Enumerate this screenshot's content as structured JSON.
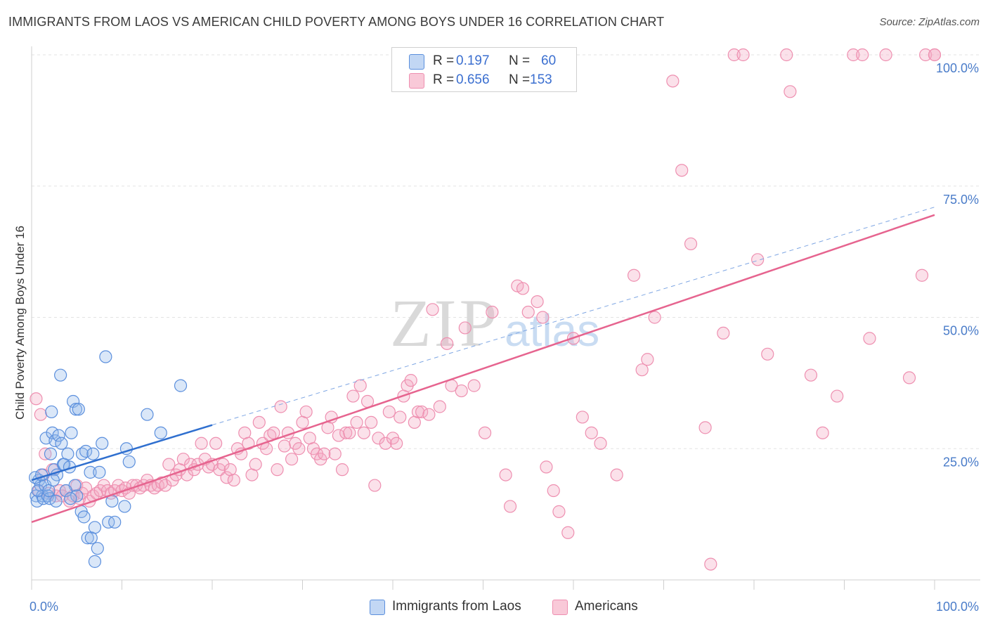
{
  "header": {
    "title": "IMMIGRANTS FROM LAOS VS AMERICAN CHILD POVERTY AMONG BOYS UNDER 16 CORRELATION CHART",
    "source": "Source: ZipAtlas.com"
  },
  "watermark": {
    "zip": "ZIP",
    "atlas": "atlas"
  },
  "legend": {
    "rows": [
      {
        "r_label": "R =",
        "r_value": "0.197",
        "n_label": "N =",
        "n_value": "60"
      },
      {
        "r_label": "R =",
        "r_value": "0.656",
        "n_label": "N =",
        "n_value": "153"
      }
    ]
  },
  "chart_data": {
    "type": "scatter",
    "ylabel": "Child Poverty Among Boys Under 16",
    "xlabel": "",
    "xlim": [
      0,
      100
    ],
    "ylim": [
      0,
      100
    ],
    "x_tick_labels": [
      "0.0%",
      "100.0%"
    ],
    "y_ticks": [
      {
        "value": 25,
        "label": "25.0%"
      },
      {
        "value": 50,
        "label": "50.0%"
      },
      {
        "value": 75,
        "label": "75.0%"
      },
      {
        "value": 100,
        "label": "100.0%"
      }
    ],
    "grid": true,
    "legend_position": "bottom",
    "colors": {
      "laos": "#5b8fdd",
      "americans": "#ee8fb0",
      "laos_line": "#2f6fcf",
      "americans_line": "#e6648f"
    },
    "series": [
      {
        "name": "Immigrants from Laos",
        "r": 0.197,
        "n": 60,
        "trend": {
          "x0": 0,
          "y0": 19.0,
          "x1": 20,
          "y1": 29.5,
          "dashed_extension_to": [
            100,
            71
          ]
        },
        "points": [
          [
            0.5,
            16
          ],
          [
            0.6,
            15
          ],
          [
            0.8,
            19
          ],
          [
            1,
            18
          ],
          [
            1.2,
            16
          ],
          [
            1.3,
            15.5
          ],
          [
            0.7,
            17
          ],
          [
            1.5,
            18
          ],
          [
            1.8,
            16
          ],
          [
            2,
            15.5
          ],
          [
            1.6,
            27
          ],
          [
            2.1,
            24
          ],
          [
            2.3,
            28
          ],
          [
            2.6,
            26.5
          ],
          [
            3,
            27.5
          ],
          [
            3.3,
            26
          ],
          [
            2.2,
            32
          ],
          [
            2.5,
            21
          ],
          [
            2.8,
            20
          ],
          [
            3.5,
            22
          ],
          [
            3.6,
            22
          ],
          [
            4,
            24
          ],
          [
            4.4,
            28
          ],
          [
            4.6,
            34
          ],
          [
            4.9,
            32.5
          ],
          [
            5.2,
            32.5
          ],
          [
            5.6,
            24
          ],
          [
            6,
            24.5
          ],
          [
            6.5,
            20.5
          ],
          [
            6.8,
            24
          ],
          [
            3.2,
            39
          ],
          [
            4.2,
            21.5
          ],
          [
            4.8,
            18
          ],
          [
            5,
            16
          ],
          [
            5.5,
            13
          ],
          [
            5.8,
            12
          ],
          [
            6.2,
            8
          ],
          [
            6.6,
            8
          ],
          [
            7,
            10
          ],
          [
            7.3,
            6
          ],
          [
            7.5,
            20.5
          ],
          [
            7.8,
            26
          ],
          [
            8.5,
            11
          ],
          [
            8.9,
            15
          ],
          [
            9.2,
            11
          ],
          [
            10.3,
            14
          ],
          [
            10.5,
            25
          ],
          [
            10.8,
            22.5
          ],
          [
            12.8,
            31.5
          ],
          [
            14.3,
            28
          ],
          [
            8.2,
            42.5
          ],
          [
            16.5,
            37
          ],
          [
            1.9,
            17
          ],
          [
            2.4,
            19
          ],
          [
            2.7,
            15
          ],
          [
            3.8,
            17
          ],
          [
            4.3,
            15.5
          ],
          [
            0.4,
            19.5
          ],
          [
            1.1,
            20
          ],
          [
            7,
            3.5
          ]
        ]
      },
      {
        "name": "Americans",
        "r": 0.656,
        "n": 153,
        "trend": {
          "x0": 0,
          "y0": 11,
          "x1": 100,
          "y1": 69.5
        },
        "points": [
          [
            0.5,
            34.5
          ],
          [
            0.8,
            17
          ],
          [
            1,
            31.5
          ],
          [
            1.3,
            20
          ],
          [
            1.5,
            24
          ],
          [
            1.9,
            16.5
          ],
          [
            2.3,
            21
          ],
          [
            2.7,
            16
          ],
          [
            3.1,
            17
          ],
          [
            3.4,
            16
          ],
          [
            3.8,
            17
          ],
          [
            4.2,
            15
          ],
          [
            4.6,
            16
          ],
          [
            5,
            18
          ],
          [
            5.3,
            15.5
          ],
          [
            5.6,
            16.5
          ],
          [
            6,
            17.5
          ],
          [
            6.4,
            15
          ],
          [
            6.8,
            16
          ],
          [
            7.2,
            16.5
          ],
          [
            7.6,
            17
          ],
          [
            8,
            18
          ],
          [
            8.4,
            17
          ],
          [
            8.8,
            16.5
          ],
          [
            9.2,
            17
          ],
          [
            9.6,
            18
          ],
          [
            10,
            17
          ],
          [
            10.4,
            17.5
          ],
          [
            10.8,
            16.5
          ],
          [
            11.2,
            18
          ],
          [
            11.6,
            18
          ],
          [
            12,
            17.5
          ],
          [
            12.4,
            18
          ],
          [
            12.8,
            19
          ],
          [
            13.2,
            18
          ],
          [
            13.6,
            17.5
          ],
          [
            14,
            18
          ],
          [
            14.4,
            18.5
          ],
          [
            14.8,
            18
          ],
          [
            15.2,
            22
          ],
          [
            15.6,
            19
          ],
          [
            16,
            20
          ],
          [
            16.4,
            21
          ],
          [
            16.8,
            23
          ],
          [
            17.2,
            20
          ],
          [
            17.6,
            22
          ],
          [
            18,
            21
          ],
          [
            18.4,
            22
          ],
          [
            18.8,
            26
          ],
          [
            19.2,
            23
          ],
          [
            19.6,
            21.5
          ],
          [
            20,
            22
          ],
          [
            20.4,
            26
          ],
          [
            20.8,
            21
          ],
          [
            21.2,
            22
          ],
          [
            21.6,
            19.5
          ],
          [
            22,
            21
          ],
          [
            22.4,
            19
          ],
          [
            22.8,
            25
          ],
          [
            23.2,
            24
          ],
          [
            23.6,
            28
          ],
          [
            24,
            26
          ],
          [
            24.4,
            20
          ],
          [
            24.8,
            22
          ],
          [
            25.2,
            30
          ],
          [
            25.6,
            26
          ],
          [
            26,
            25
          ],
          [
            26.4,
            27.5
          ],
          [
            26.8,
            28
          ],
          [
            27.2,
            21
          ],
          [
            27.6,
            33
          ],
          [
            28,
            25.5
          ],
          [
            28.4,
            28
          ],
          [
            28.8,
            23
          ],
          [
            29.2,
            26
          ],
          [
            29.6,
            25
          ],
          [
            30,
            30
          ],
          [
            30.4,
            32
          ],
          [
            30.8,
            27
          ],
          [
            31.2,
            25
          ],
          [
            31.6,
            24
          ],
          [
            32,
            23
          ],
          [
            32.4,
            24
          ],
          [
            32.8,
            29
          ],
          [
            33.2,
            31
          ],
          [
            33.6,
            24
          ],
          [
            34,
            27.5
          ],
          [
            34.4,
            21
          ],
          [
            34.8,
            28
          ],
          [
            35.2,
            28
          ],
          [
            35.6,
            35
          ],
          [
            36,
            30
          ],
          [
            36.4,
            37
          ],
          [
            36.8,
            28
          ],
          [
            37.2,
            34
          ],
          [
            37.6,
            30
          ],
          [
            38,
            18
          ],
          [
            38.4,
            27
          ],
          [
            39.2,
            26
          ],
          [
            39.6,
            32
          ],
          [
            40,
            27
          ],
          [
            40.4,
            26
          ],
          [
            40.8,
            31
          ],
          [
            41.2,
            35
          ],
          [
            41.6,
            37
          ],
          [
            42,
            38
          ],
          [
            42.4,
            30
          ],
          [
            42.8,
            32
          ],
          [
            43.2,
            32
          ],
          [
            44,
            31.5
          ],
          [
            44.4,
            51.5
          ],
          [
            45.2,
            33
          ],
          [
            46,
            45
          ],
          [
            46.5,
            37
          ],
          [
            47.6,
            36
          ],
          [
            48,
            48
          ],
          [
            49,
            37
          ],
          [
            50.2,
            28
          ],
          [
            51,
            51
          ],
          [
            52.5,
            20
          ],
          [
            53,
            14
          ],
          [
            53.8,
            56
          ],
          [
            54.4,
            55.5
          ],
          [
            55,
            51
          ],
          [
            56,
            53
          ],
          [
            56.6,
            50
          ],
          [
            57,
            21.5
          ],
          [
            57.8,
            17
          ],
          [
            58.4,
            13
          ],
          [
            59.4,
            9
          ],
          [
            60,
            46
          ],
          [
            61,
            31
          ],
          [
            62,
            28
          ],
          [
            63,
            26
          ],
          [
            64.8,
            20
          ],
          [
            66.7,
            58
          ],
          [
            67.6,
            40
          ],
          [
            68.2,
            42
          ],
          [
            69,
            50
          ],
          [
            71,
            95
          ],
          [
            72,
            78
          ],
          [
            73,
            64
          ],
          [
            74.6,
            29
          ],
          [
            75.2,
            3
          ],
          [
            76.6,
            47
          ],
          [
            77.8,
            100
          ],
          [
            78.8,
            100
          ],
          [
            80.4,
            61
          ],
          [
            81.5,
            43
          ],
          [
            83.6,
            100
          ],
          [
            84,
            93
          ],
          [
            86.3,
            39
          ],
          [
            87.6,
            28
          ],
          [
            89.2,
            35
          ],
          [
            91,
            100
          ],
          [
            92,
            100
          ],
          [
            92.8,
            46
          ],
          [
            94.6,
            100
          ],
          [
            99,
            100
          ],
          [
            100,
            100
          ],
          [
            98.6,
            58
          ],
          [
            100,
            100
          ],
          [
            97.2,
            38.5
          ]
        ]
      }
    ]
  },
  "bottom_legend": {
    "items": [
      {
        "label": "Immigrants from Laos"
      },
      {
        "label": "Americans"
      }
    ]
  }
}
